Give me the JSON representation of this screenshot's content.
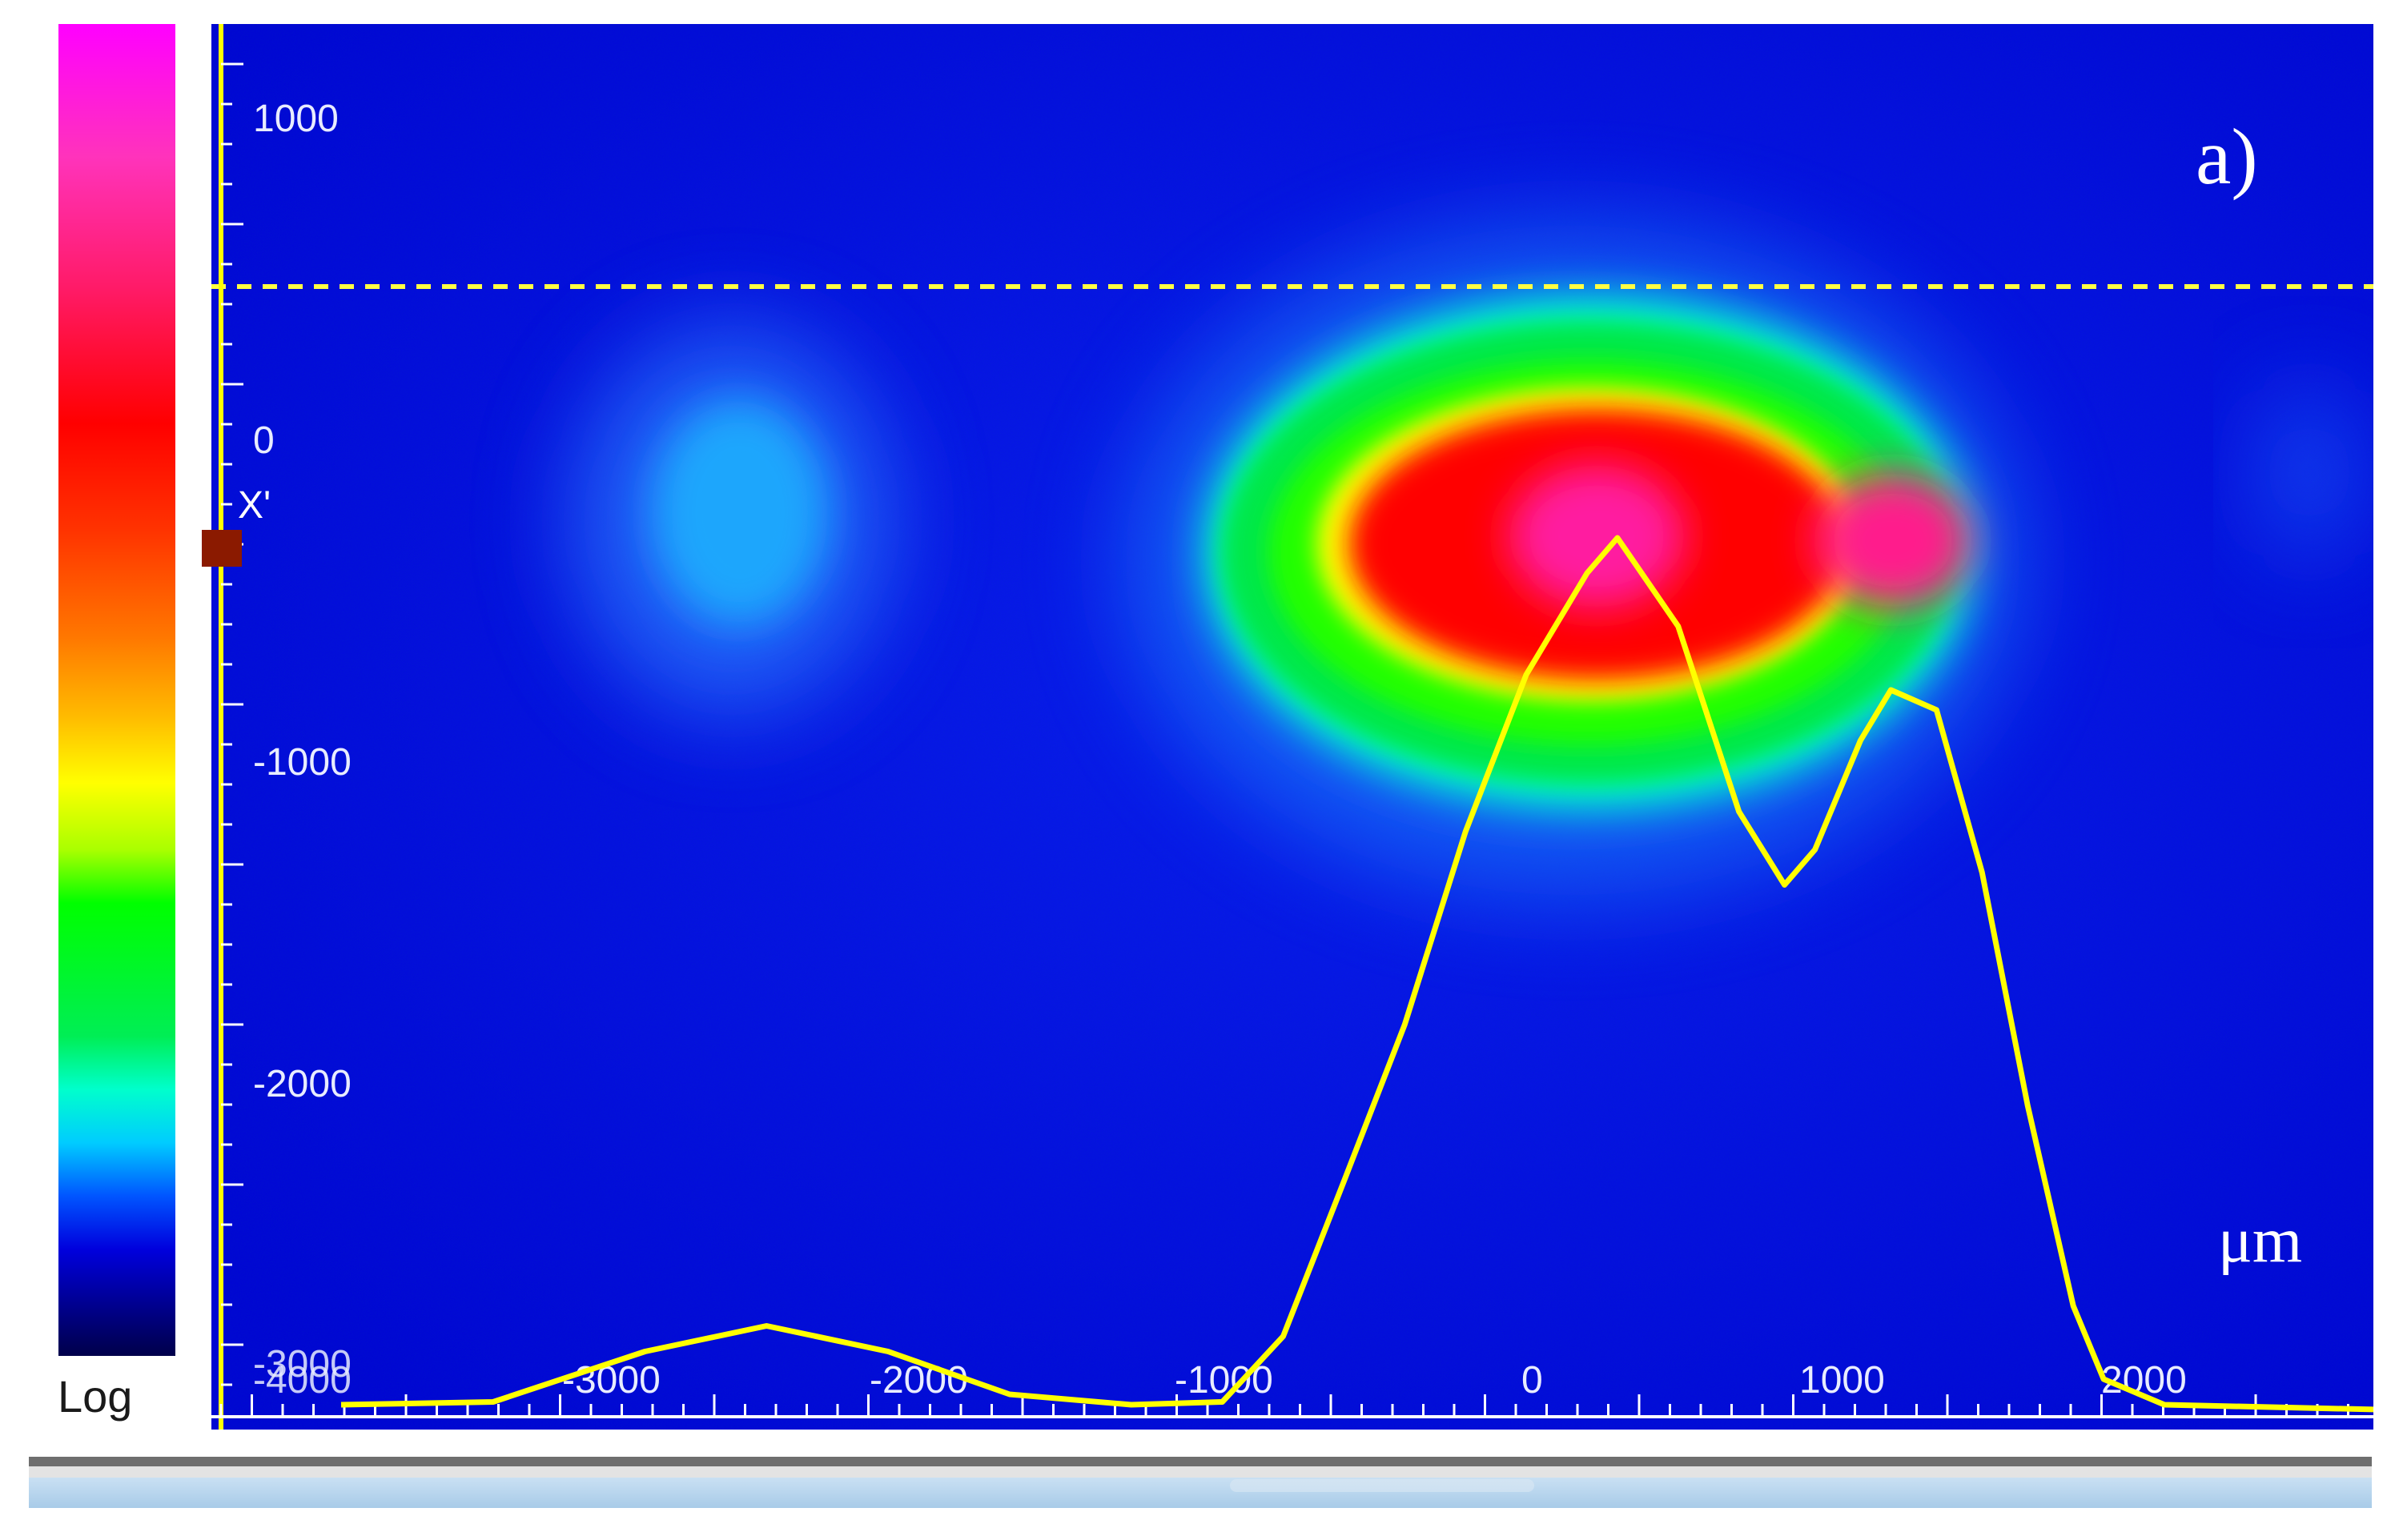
{
  "panel_label": "a)",
  "unit_label": "μm",
  "cursor_label": "X'",
  "colorbar": {
    "scale_label": "Log"
  },
  "axes": {
    "y_ticks": [
      "1000",
      "0",
      "-1000",
      "-2000",
      "-3000"
    ],
    "x_ticks": [
      "-4000",
      "-3000",
      "-2000",
      "-1000",
      "0",
      "1000",
      "2000"
    ]
  },
  "colors": {
    "background": "#0000e6",
    "cursor_line": "#ffff44",
    "profile": "#ffff00",
    "axis": "#ffff00"
  },
  "profile": {
    "x": [
      -4000,
      -3500,
      -3000,
      -2600,
      -2200,
      -1800,
      -1400,
      -1100,
      -900,
      -700,
      -500,
      -300,
      -100,
      100,
      200,
      400,
      600,
      750,
      850,
      1000,
      1100,
      1250,
      1400,
      1550,
      1700,
      1800,
      2000,
      2700
    ],
    "y": [
      0.02,
      0.03,
      0.09,
      0.13,
      0.09,
      0.04,
      0.02,
      0.03,
      0.11,
      0.32,
      0.52,
      0.78,
      0.98,
      1.12,
      1.16,
      1.05,
      0.8,
      0.71,
      0.75,
      0.9,
      0.96,
      0.94,
      0.72,
      0.42,
      0.15,
      0.06,
      0.02,
      0.02
    ]
  }
}
